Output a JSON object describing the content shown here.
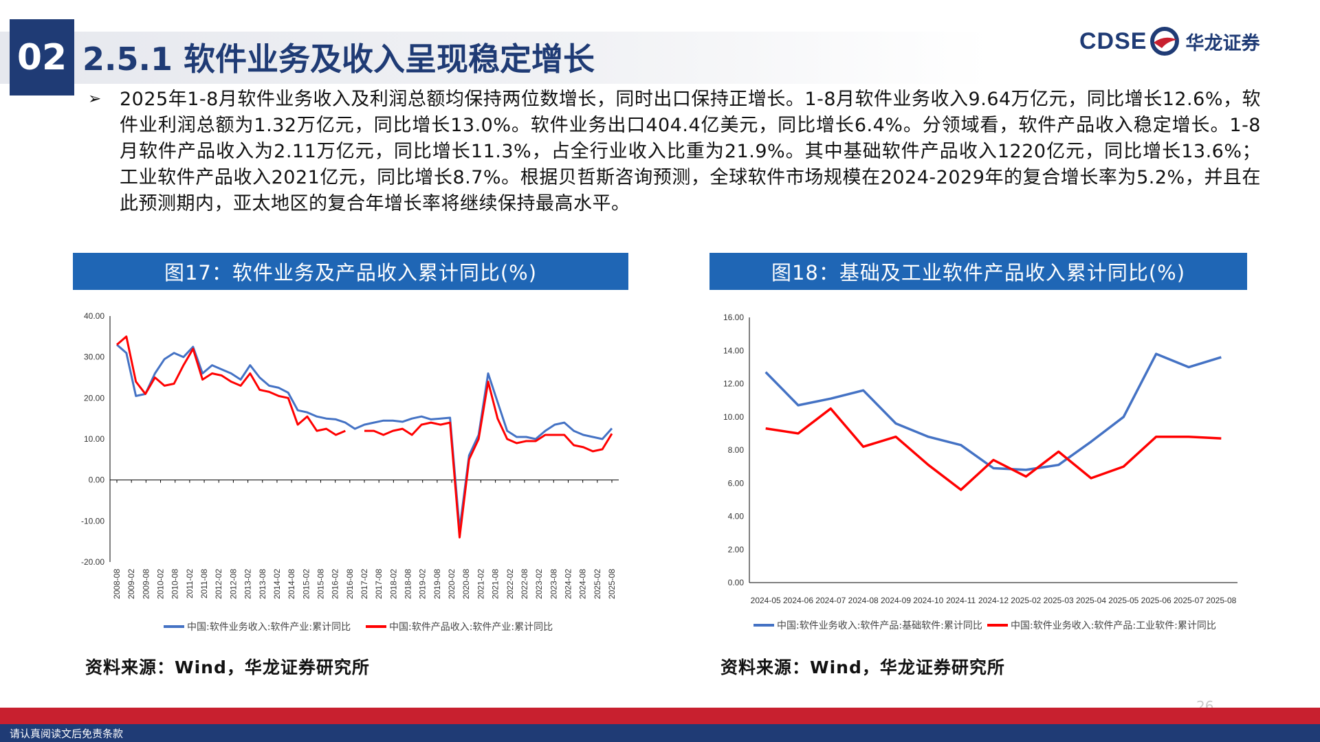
{
  "header": {
    "section_number": "02",
    "title": "2.5.1 软件业务及收入呈现稳定增长",
    "logo_text": "CDSE",
    "logo_cn": "华龙证券"
  },
  "body": {
    "paragraph": "2025年1-8月软件业务收入及利润总额均保持两位数增长，同时出口保持正增长。1-8月软件业务收入9.64万亿元，同比增长12.6%，软件业利润总额为1.32万亿元，同比增长13.0%。软件业务出口404.4亿美元，同比增长6.4%。分领域看，软件产品收入稳定增长。1-8月软件产品收入为2.11万亿元，同比增长11.3%，占全行业收入比重为21.9%。其中基础软件产品收入1220亿元，同比增长13.6%；工业软件产品收入2021亿元，同比增长8.7%。根据贝哲斯咨询预测，全球软件市场规模在2024-2029年的复合增长率为5.2%，并且在此预测期内，亚太地区的复合年增长率将继续保持最高水平。"
  },
  "charts": {
    "left_title": "图17：软件业务及产品收入累计同比(%)",
    "right_title": "图18：基础及工业软件产品收入累计同比(%)",
    "left_source": "资料来源：Wind，华龙证券研究所",
    "right_source": "资料来源：Wind，华龙证券研究所"
  },
  "colors": {
    "navy": "#1f3b75",
    "blue_series": "#4472c4",
    "red_series": "#ff0000",
    "header_blue": "#1f66b5",
    "footer_red": "#c8202f"
  },
  "chart_data": [
    {
      "type": "line",
      "title": "图17：软件业务及产品收入累计同比(%)",
      "ylim": [
        -20,
        40
      ],
      "yticks": [
        "40.00",
        "30.00",
        "20.00",
        "10.00",
        "0.00",
        "-10.00",
        "-20.00"
      ],
      "x_tick_labels": [
        "2008-08",
        "2009-02",
        "2009-08",
        "2010-02",
        "2010-08",
        "2011-02",
        "2011-08",
        "2012-02",
        "2012-08",
        "2013-02",
        "2013-08",
        "2014-02",
        "2014-08",
        "2015-02",
        "2015-08",
        "2016-02",
        "2016-08",
        "2017-02",
        "2017-08",
        "2018-02",
        "2018-08",
        "2019-02",
        "2019-08",
        "2020-02",
        "2020-08",
        "2021-02",
        "2021-08",
        "2022-02",
        "2022-08",
        "2023-02",
        "2023-08",
        "2024-02",
        "2024-08",
        "2025-02",
        "2025-08"
      ],
      "series": [
        {
          "name": "中国:软件业务收入:软件产业:累计同比",
          "color": "#4472c4",
          "values": [
            33,
            31,
            20.5,
            21,
            26,
            29.5,
            31,
            30,
            32.5,
            26,
            28,
            27,
            26,
            24.5,
            28,
            25,
            23,
            22.5,
            21.3,
            17,
            16.5,
            15.5,
            15,
            14.8,
            14,
            12.5,
            13.5,
            14,
            14.5,
            14.5,
            14.2,
            15,
            15.5,
            14.8,
            15,
            15.2,
            -12,
            6,
            11,
            26,
            19,
            12,
            10.5,
            10.5,
            10,
            12,
            13.5,
            14,
            12,
            11,
            10.5,
            10,
            12.6
          ]
        },
        {
          "name": "中国:软件产品收入:软件产业:累计同比",
          "color": "#ff0000",
          "values": [
            33,
            35,
            24,
            21,
            25,
            23,
            23.5,
            28,
            32,
            24.5,
            26,
            25.5,
            24,
            23,
            26,
            22,
            21.5,
            20.5,
            20,
            13.5,
            15.5,
            12,
            12.5,
            11,
            12,
            null,
            12,
            12,
            11,
            12,
            12.5,
            11,
            13.5,
            14,
            13.5,
            14,
            -14,
            5,
            10,
            24,
            15,
            10,
            9,
            9.5,
            9.5,
            11,
            11,
            11,
            8.5,
            8,
            7,
            7.5,
            11.3
          ]
        }
      ]
    },
    {
      "type": "line",
      "title": "图18：基础及工业软件产品收入累计同比(%)",
      "ylim": [
        0,
        16
      ],
      "yticks": [
        "16.00",
        "14.00",
        "12.00",
        "10.00",
        "8.00",
        "6.00",
        "4.00",
        "2.00",
        "0.00"
      ],
      "categories": [
        "2024-05",
        "2024-06",
        "2024-07",
        "2024-08",
        "2024-09",
        "2024-10",
        "2024-11",
        "2024-12",
        "2025-02",
        "2025-03",
        "2025-04",
        "2025-05",
        "2025-06",
        "2025-07",
        "2025-08"
      ],
      "series": [
        {
          "name": "中国:软件业务收入:软件产品:基础软件:累计同比",
          "color": "#4472c4",
          "values": [
            12.7,
            10.7,
            11.1,
            11.6,
            9.6,
            8.8,
            8.3,
            6.9,
            6.8,
            7.1,
            8.5,
            10.0,
            13.8,
            13.0,
            13.6
          ]
        },
        {
          "name": "中国:软件业务收入:软件产品:工业软件:累计同比",
          "color": "#ff0000",
          "values": [
            9.3,
            9.0,
            10.5,
            8.2,
            8.8,
            7.1,
            5.6,
            7.4,
            6.4,
            7.9,
            6.3,
            7.0,
            8.8,
            8.8,
            8.7
          ]
        }
      ]
    }
  ],
  "footer": {
    "disclaimer": "请认真阅读文后免责条款",
    "page_number": "26"
  }
}
